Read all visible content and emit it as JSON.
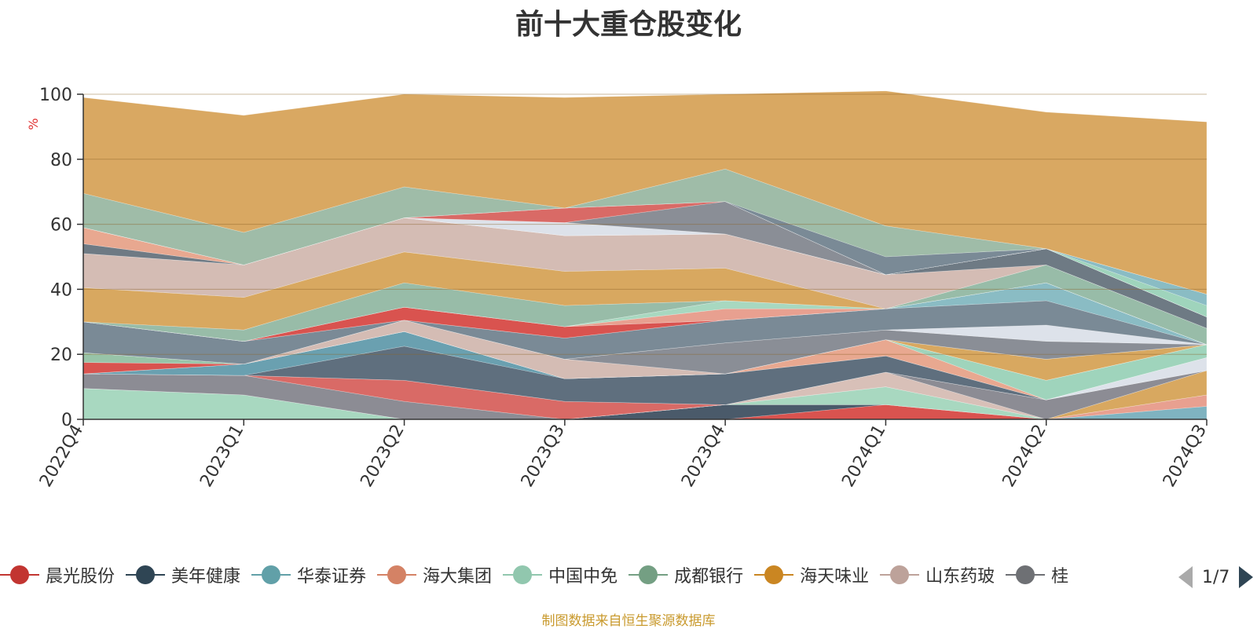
{
  "title": "前十大重仓股变化",
  "source_note": "制图数据来自恒生聚源数据库",
  "pager": {
    "text": "1/7"
  },
  "legend_items": [
    {
      "label": "晨光股份",
      "color": "#c23531"
    },
    {
      "label": "美年健康",
      "color": "#2f4554"
    },
    {
      "label": "华泰证券",
      "color": "#61a0a8"
    },
    {
      "label": "海大集团",
      "color": "#d48265"
    },
    {
      "label": "中国中免",
      "color": "#91c7ae"
    },
    {
      "label": "成都银行",
      "color": "#749f83"
    },
    {
      "label": "海天味业",
      "color": "#ca8622"
    },
    {
      "label": "山东药玻",
      "color": "#bda29a"
    },
    {
      "label": "桂",
      "color": "#6e7074"
    }
  ],
  "chart_data": {
    "type": "area",
    "stacked": true,
    "y_unit": "%",
    "ylim": [
      0,
      100
    ],
    "yticks": [
      0,
      20,
      40,
      60,
      80,
      100
    ],
    "grid": true,
    "categories": [
      "2022Q4",
      "2023Q1",
      "2023Q2",
      "2023Q3",
      "2023Q4",
      "2024Q1",
      "2024Q2",
      "2024Q3"
    ],
    "series": [
      {
        "values": [
          0,
          0,
          0,
          0,
          0,
          4.5,
          0,
          0
        ],
        "color": "#d9534f"
      },
      {
        "values": [
          0,
          0,
          0,
          0,
          4.5,
          0,
          0,
          0
        ],
        "color": "#4a5a6a"
      },
      {
        "values": [
          0,
          0,
          0,
          0,
          0,
          0,
          0,
          4
        ],
        "color": "#7fb3c0"
      },
      {
        "values": [
          0,
          0,
          0,
          0,
          0,
          0,
          0,
          3.5
        ],
        "color": "#e8a090"
      },
      {
        "values": [
          9.5,
          7.5,
          0,
          0,
          0,
          5.5,
          0,
          0
        ],
        "color": "#a8d8c0"
      },
      {
        "values": [
          0,
          0,
          0,
          0,
          0,
          0,
          0,
          7.5
        ],
        "color": "#d8a860"
      },
      {
        "values": [
          0,
          0,
          0,
          0,
          0,
          4.5,
          0,
          0
        ],
        "color": "#d8c0b8"
      },
      {
        "values": [
          4.5,
          6,
          5.5,
          0,
          0,
          0,
          6,
          0
        ],
        "color": "#8c8c94"
      },
      {
        "values": [
          0,
          0,
          6.5,
          5.5,
          0,
          0,
          0,
          0
        ],
        "color": "#d96a66"
      },
      {
        "values": [
          0,
          0,
          0,
          0,
          0,
          0,
          0,
          4
        ],
        "color": "#dde2ea"
      },
      {
        "values": [
          0,
          0,
          10.5,
          7,
          9.5,
          5,
          0,
          0
        ],
        "color": "#5f6f7e"
      },
      {
        "values": [
          0,
          3.5,
          4.5,
          0,
          0,
          0,
          0,
          0
        ],
        "color": "#6aa0b0"
      },
      {
        "values": [
          0,
          0,
          0,
          0,
          0,
          5,
          0,
          0
        ],
        "color": "#e8a890"
      },
      {
        "values": [
          0,
          0,
          0,
          0,
          0,
          0,
          6,
          4
        ],
        "color": "#9fd4bc"
      },
      {
        "values": [
          3.5,
          0,
          0,
          0,
          0,
          0,
          0,
          0
        ],
        "color": "#d9534f"
      },
      {
        "values": [
          3,
          0,
          0,
          0,
          0,
          0,
          0,
          0
        ],
        "color": "#98c4a8"
      },
      {
        "values": [
          0,
          0,
          0,
          0,
          0,
          0,
          6.5,
          0
        ],
        "color": "#d8a860"
      },
      {
        "values": [
          0,
          0,
          3.5,
          6,
          0,
          0,
          0,
          0
        ],
        "color": "#d4bcb4"
      },
      {
        "values": [
          0,
          0,
          0,
          0,
          9.5,
          3,
          5.5,
          0
        ],
        "color": "#8a8e96"
      },
      {
        "values": [
          0,
          0,
          0,
          0,
          0,
          0,
          5,
          0
        ],
        "color": "#dde2ea"
      },
      {
        "values": [
          9.5,
          7,
          0,
          6.5,
          7,
          6.5,
          7.5,
          0
        ],
        "color": "#7a8a96"
      },
      {
        "values": [
          0,
          0,
          0,
          0,
          0,
          0,
          5.5,
          0
        ],
        "color": "#8abcc4"
      },
      {
        "values": [
          0,
          0,
          4,
          3.5,
          0,
          0,
          0,
          0
        ],
        "color": "#d9534f"
      },
      {
        "values": [
          0,
          0,
          0,
          0,
          0,
          0,
          0,
          0
        ],
        "color": "#8abcc4"
      },
      {
        "values": [
          0,
          0,
          0,
          0,
          3.5,
          0,
          0,
          0
        ],
        "color": "#e8a090"
      },
      {
        "values": [
          0,
          0,
          0,
          0,
          2.5,
          0,
          0,
          0
        ],
        "color": "#a8d8c0"
      },
      {
        "values": [
          0,
          3.5,
          7.5,
          6.5,
          0,
          0,
          5.5,
          5
        ],
        "color": "#98bca8"
      },
      {
        "values": [
          10.5,
          10,
          9.5,
          10.5,
          10,
          0,
          0,
          0
        ],
        "color": "#d8a860"
      },
      {
        "values": [
          10.5,
          10,
          10.5,
          11,
          10.5,
          10.5,
          0,
          0
        ],
        "color": "#d4bcb4"
      },
      {
        "values": [
          0,
          0,
          0,
          0,
          0,
          0,
          5,
          3.5
        ],
        "color": "#6e7a84"
      },
      {
        "values": [
          3,
          0,
          0,
          0,
          0,
          0,
          0,
          0
        ],
        "color": "#6e7a84"
      },
      {
        "values": [
          5,
          0,
          0,
          0,
          0,
          0,
          0,
          0
        ],
        "color": "#e8a890"
      },
      {
        "values": [
          0,
          0,
          0,
          4,
          0,
          0,
          0,
          0
        ],
        "color": "#dde2ea"
      },
      {
        "values": [
          0,
          0,
          0,
          0,
          10,
          0,
          0,
          0
        ],
        "color": "#8a8e96"
      },
      {
        "values": [
          0,
          0,
          0,
          4.5,
          0,
          0,
          0,
          0
        ],
        "color": "#d96a66"
      },
      {
        "values": [
          0,
          0,
          0,
          0,
          0,
          0,
          0,
          3.5
        ],
        "color": "#9fd4bc"
      },
      {
        "values": [
          0,
          0,
          0,
          0,
          0,
          0,
          0,
          3.5
        ],
        "color": "#8abcc4"
      },
      {
        "values": [
          0,
          0,
          0,
          0,
          0,
          5.5,
          0,
          0
        ],
        "color": "#7a8a96"
      },
      {
        "values": [
          10.5,
          10,
          9.5,
          0,
          10,
          9.5,
          0,
          0
        ],
        "color": "#9fbca8"
      },
      {
        "values": [
          29.5,
          36,
          28.5,
          34,
          23,
          41.5,
          42,
          53
        ],
        "color": "#d9a862"
      }
    ]
  }
}
